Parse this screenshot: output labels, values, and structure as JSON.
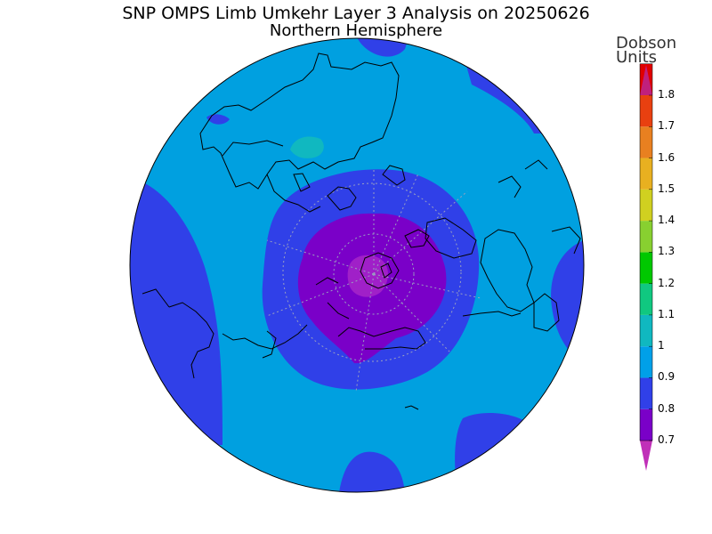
{
  "title": "SNP OMPS Limb Umkehr Layer 3 Analysis on 20250626",
  "subtitle": "Northern Hemisphere",
  "colorbar": {
    "title_line1": "Dobson",
    "title_line2": "Units",
    "ticks": [
      "1.8",
      "1.7",
      "1.6",
      "1.5",
      "1.4",
      "1.3",
      "1.2",
      "1.1",
      "1",
      "0.9",
      "0.8",
      "0.7"
    ],
    "colors": [
      "#7a00c8",
      "#3040e8",
      "#00a0e8",
      "#10b8c0",
      "#10c880",
      "#00c800",
      "#88d030",
      "#d0d020",
      "#e8b020",
      "#e88020",
      "#e84010",
      "#e00000"
    ],
    "arrow_top_color": "#c0207c",
    "arrow_bottom_color": "#c030b8"
  },
  "map_colors": {
    "base": "#00a0e0",
    "level_08": "#3040e8",
    "level_07": "#7a00c8",
    "level_min": "#a020c8",
    "level_10": "#10b8c0",
    "coast": "#000000",
    "grid": "#9aa0c0"
  }
}
